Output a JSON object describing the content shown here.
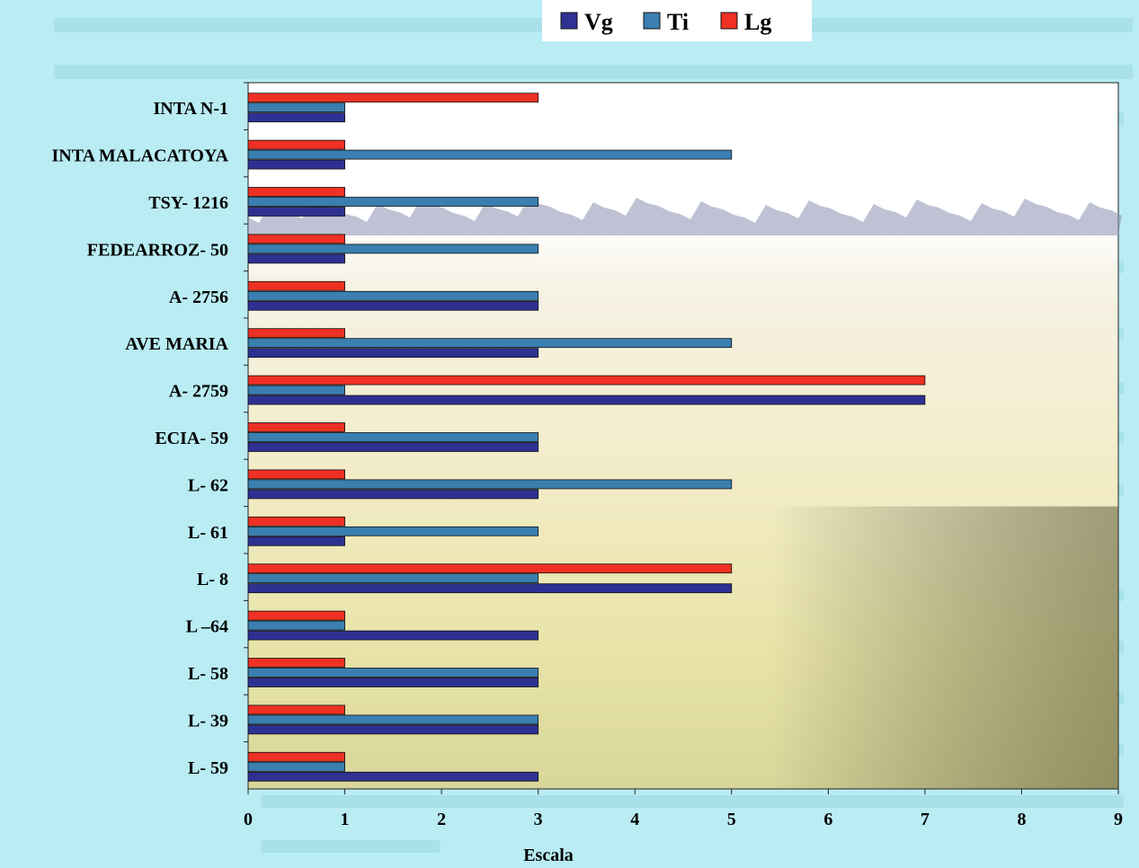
{
  "chart_data": {
    "type": "bar",
    "orientation": "horizontal",
    "title": "",
    "xlabel": "Escala",
    "ylabel": "",
    "xlim": [
      0,
      9
    ],
    "xticks": [
      0,
      1,
      2,
      3,
      4,
      5,
      6,
      7,
      8,
      9
    ],
    "grid": false,
    "legend_position": "top",
    "categories": [
      "INTA N-1",
      "INTA MALACATOYA",
      "TSY- 1216",
      "FEDEARROZ- 50",
      "A- 2756",
      "AVE MARIA",
      "A- 2759",
      "ECIA- 59",
      "L- 62",
      "L- 61",
      "L- 8",
      "L –64",
      "L- 58",
      "L- 39",
      "L- 59"
    ],
    "series": [
      {
        "name": "Vg",
        "color": "#2e3192",
        "values": [
          1,
          1,
          1,
          1,
          3,
          3,
          7,
          3,
          3,
          1,
          5,
          3,
          3,
          3,
          3
        ]
      },
      {
        "name": "Ti",
        "color": "#3a7fb0",
        "values": [
          1,
          5,
          3,
          3,
          3,
          5,
          1,
          3,
          5,
          3,
          3,
          1,
          3,
          3,
          1
        ]
      },
      {
        "name": "Lg",
        "color": "#ee3124",
        "values": [
          3,
          1,
          1,
          1,
          1,
          1,
          7,
          1,
          1,
          1,
          5,
          1,
          1,
          1,
          1
        ]
      }
    ]
  }
}
